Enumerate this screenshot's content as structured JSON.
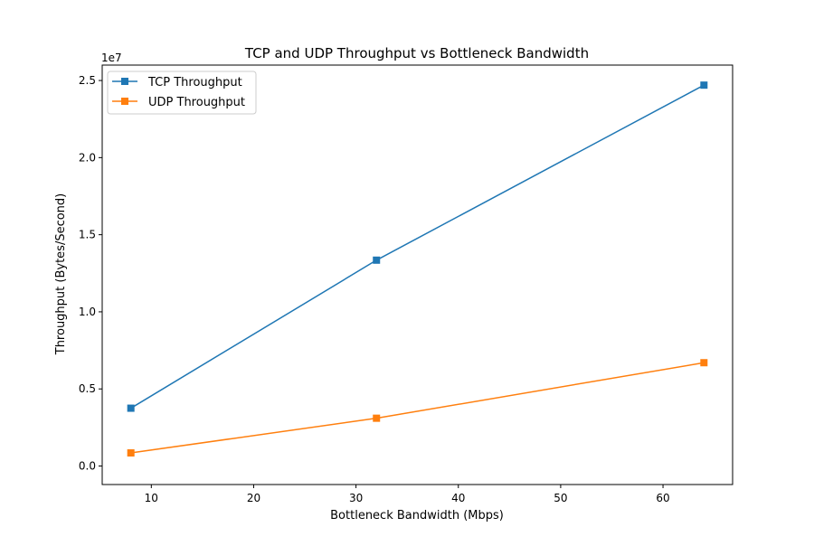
{
  "chart_data": {
    "type": "line",
    "title": "TCP and UDP Throughput vs Bottleneck Bandwidth",
    "xlabel": "Bottleneck Bandwidth (Mbps)",
    "ylabel": "Throughput (Bytes/Second)",
    "y_offset_text": "1e7",
    "xlim": [
      5.2,
      66.8
    ],
    "ylim": [
      -0.12,
      2.6
    ],
    "y_scale_multiplier": 10000000,
    "x_ticks": [
      {
        "value": 10,
        "label": "10"
      },
      {
        "value": 20,
        "label": "20"
      },
      {
        "value": 30,
        "label": "30"
      },
      {
        "value": 40,
        "label": "40"
      },
      {
        "value": 50,
        "label": "50"
      },
      {
        "value": 60,
        "label": "60"
      }
    ],
    "y_ticks": [
      {
        "value": 0.0,
        "label": "0.0"
      },
      {
        "value": 0.5,
        "label": "0.5"
      },
      {
        "value": 1.0,
        "label": "1.0"
      },
      {
        "value": 1.5,
        "label": "1.5"
      },
      {
        "value": 2.0,
        "label": "2.0"
      },
      {
        "value": 2.5,
        "label": "2.5"
      }
    ],
    "grid": false,
    "legend_position": "top-left",
    "series": [
      {
        "name": "TCP Throughput",
        "color": "#1f77b4",
        "marker": "square",
        "x": [
          8,
          32,
          64
        ],
        "y": [
          0.375,
          1.335,
          2.47
        ]
      },
      {
        "name": "UDP Throughput",
        "color": "#ff7f0e",
        "marker": "square",
        "x": [
          8,
          32,
          64
        ],
        "y": [
          0.085,
          0.31,
          0.67
        ]
      }
    ]
  }
}
